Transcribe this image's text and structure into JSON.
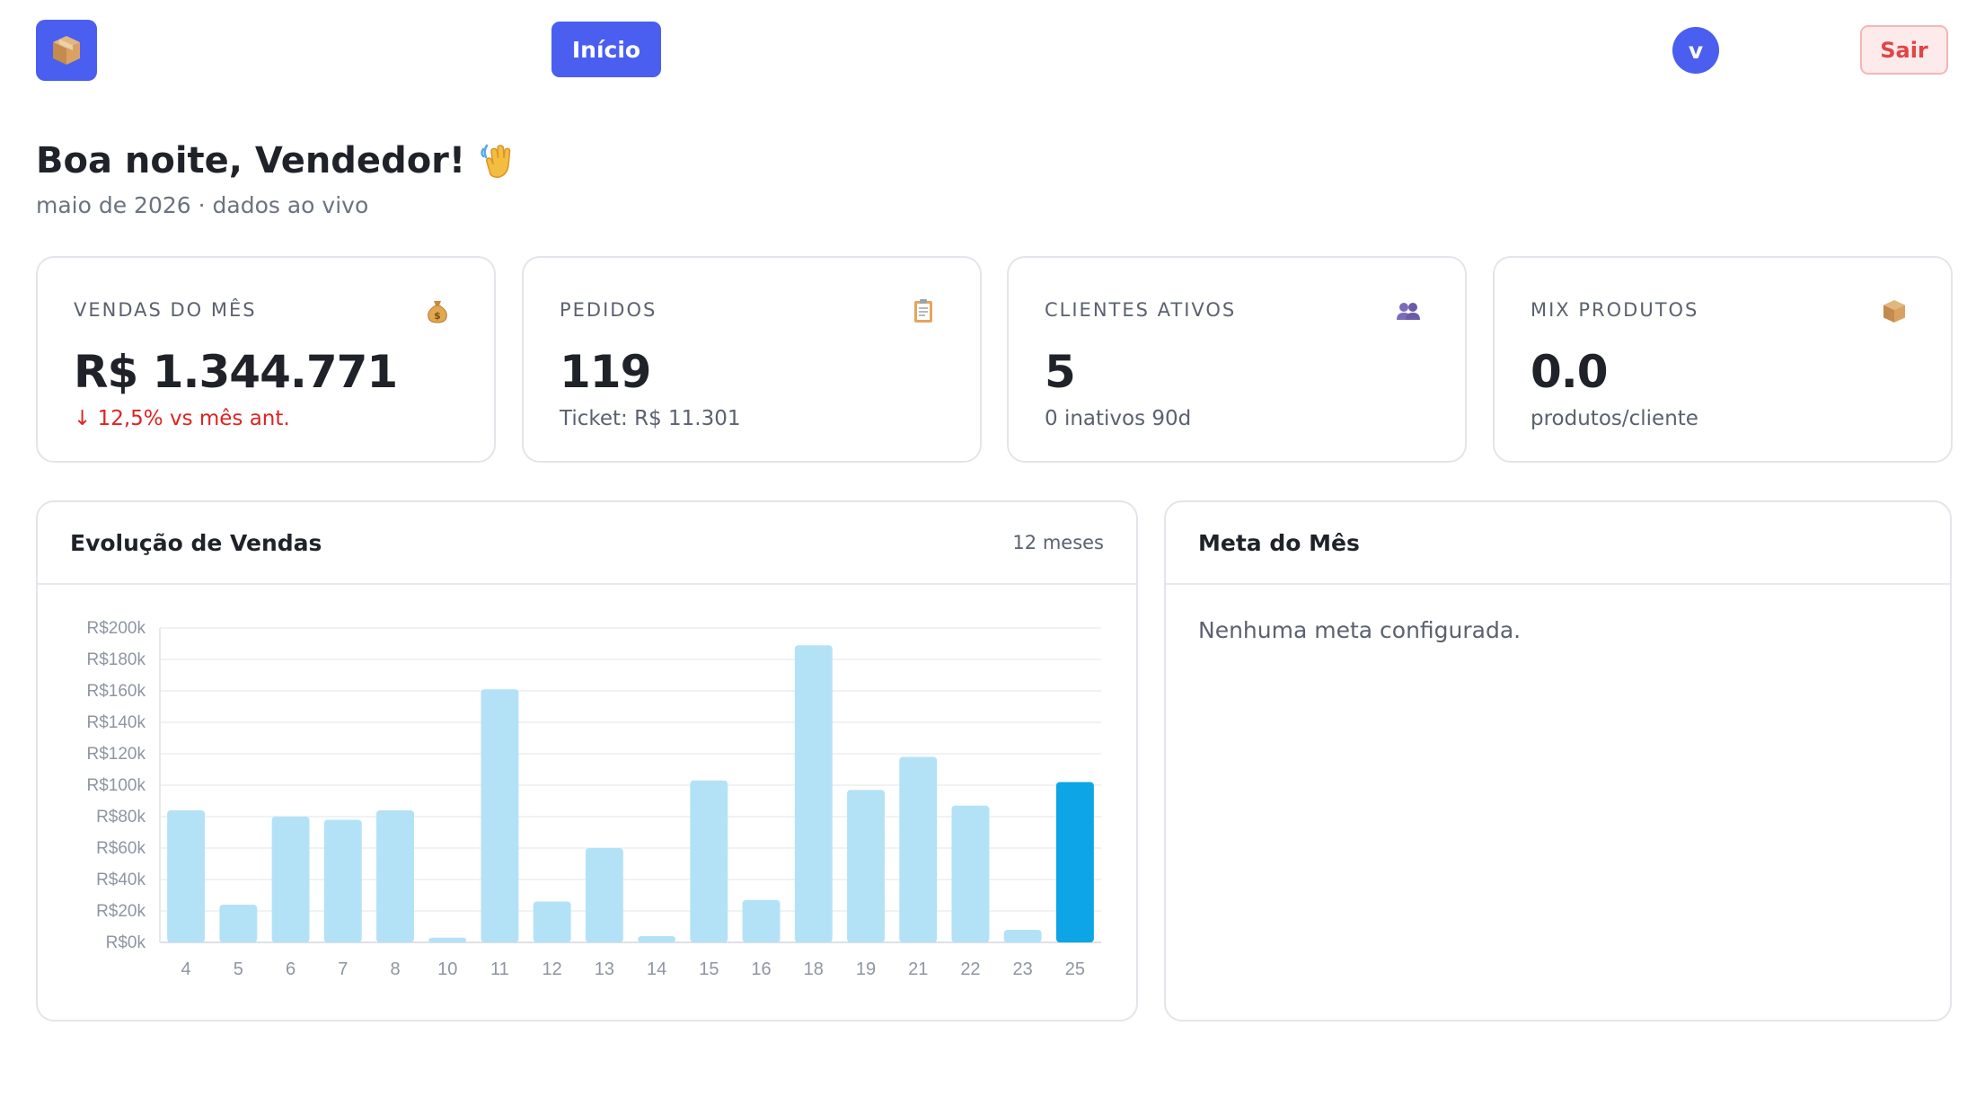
{
  "header": {
    "logo_icon": "package-icon",
    "nav": [
      {
        "label": "Início",
        "active": true
      }
    ],
    "user_initial": "v",
    "logout_label": "Sair"
  },
  "greeting": {
    "title": "Boa noite, Vendedor!",
    "title_icon": "waving-hand-icon",
    "subtitle": "maio de 2026 · dados ao vivo"
  },
  "kpis": [
    {
      "label": "VENDAS DO MÊS",
      "icon": "money-bag-icon",
      "value": "R$ 1.344.771",
      "sub": "↓ 12,5% vs mês ant.",
      "trend": "down"
    },
    {
      "label": "PEDIDOS",
      "icon": "clipboard-icon",
      "value": "119",
      "sub": "Ticket: R$ 11.301"
    },
    {
      "label": "CLIENTES ATIVOS",
      "icon": "people-icon",
      "value": "5",
      "sub": "0 inativos 90d"
    },
    {
      "label": "MIX PRODUTOS",
      "icon": "package-icon",
      "value": "0.0",
      "sub": "produtos/cliente"
    }
  ],
  "sales_panel": {
    "title": "Evolução de Vendas",
    "tag": "12 meses"
  },
  "goal_panel": {
    "title": "Meta do Mês",
    "empty_message": "Nenhuma meta configurada."
  },
  "colors": {
    "primary": "#4a5ef0",
    "bar": "#b3e2f7",
    "bar_highlight": "#0ea5e6",
    "negative": "#e02222",
    "logout_bg": "#fdeaea",
    "logout_text": "#e04545"
  },
  "chart_data": {
    "type": "bar",
    "title": "",
    "xlabel": "",
    "ylabel": "",
    "categories": [
      "4",
      "5",
      "6",
      "7",
      "8",
      "10",
      "11",
      "12",
      "13",
      "14",
      "15",
      "16",
      "18",
      "19",
      "21",
      "22",
      "23",
      "25"
    ],
    "values": [
      84000,
      24000,
      80000,
      78000,
      84000,
      3000,
      161000,
      26000,
      60000,
      4000,
      103000,
      27000,
      189000,
      97000,
      118000,
      87000,
      8000,
      102000
    ],
    "highlight_index": 17,
    "ylim": [
      0,
      200000
    ],
    "yticks": [
      "R$0k",
      "R$20k",
      "R$40k",
      "R$60k",
      "R$80k",
      "R$100k",
      "R$120k",
      "R$140k",
      "R$160k",
      "R$180k",
      "R$200k"
    ],
    "grid": true,
    "legend": "none"
  }
}
